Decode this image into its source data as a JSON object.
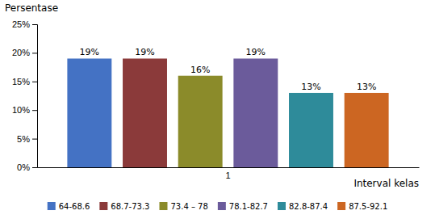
{
  "chart_data": {
    "type": "bar",
    "y_label": "Persentase",
    "x_label": "Interval kelas",
    "categories": [
      "1"
    ],
    "series": [
      {
        "name": "64-68.6",
        "color": "#4472C4",
        "values": [
          19
        ],
        "value_labels": [
          "19%"
        ]
      },
      {
        "name": "68.7-73.3",
        "color": "#8B3A3A",
        "values": [
          19
        ],
        "value_labels": [
          "19%"
        ]
      },
      {
        "name": "73.4 – 78",
        "color": "#8B8B2A",
        "values": [
          16
        ],
        "value_labels": [
          "16%"
        ]
      },
      {
        "name": "78.1-82.7",
        "color": "#6B5B9B",
        "values": [
          19
        ],
        "value_labels": [
          "19%"
        ]
      },
      {
        "name": "82.8-87.4",
        "color": "#2E8B9A",
        "values": [
          13
        ],
        "value_labels": [
          "13%"
        ]
      },
      {
        "name": "87.5-92.1",
        "color": "#CC6622",
        "values": [
          13
        ],
        "value_labels": [
          "13%"
        ]
      }
    ],
    "ylim": [
      0,
      25
    ],
    "yticks": [
      {
        "value": 0,
        "label": "0%"
      },
      {
        "value": 5,
        "label": "5%"
      },
      {
        "value": 10,
        "label": "10%"
      },
      {
        "value": 15,
        "label": "15%"
      },
      {
        "value": 20,
        "label": "20%"
      },
      {
        "value": 25,
        "label": "25%"
      }
    ],
    "grid": false,
    "legend": "bottom",
    "data_labels": true
  }
}
